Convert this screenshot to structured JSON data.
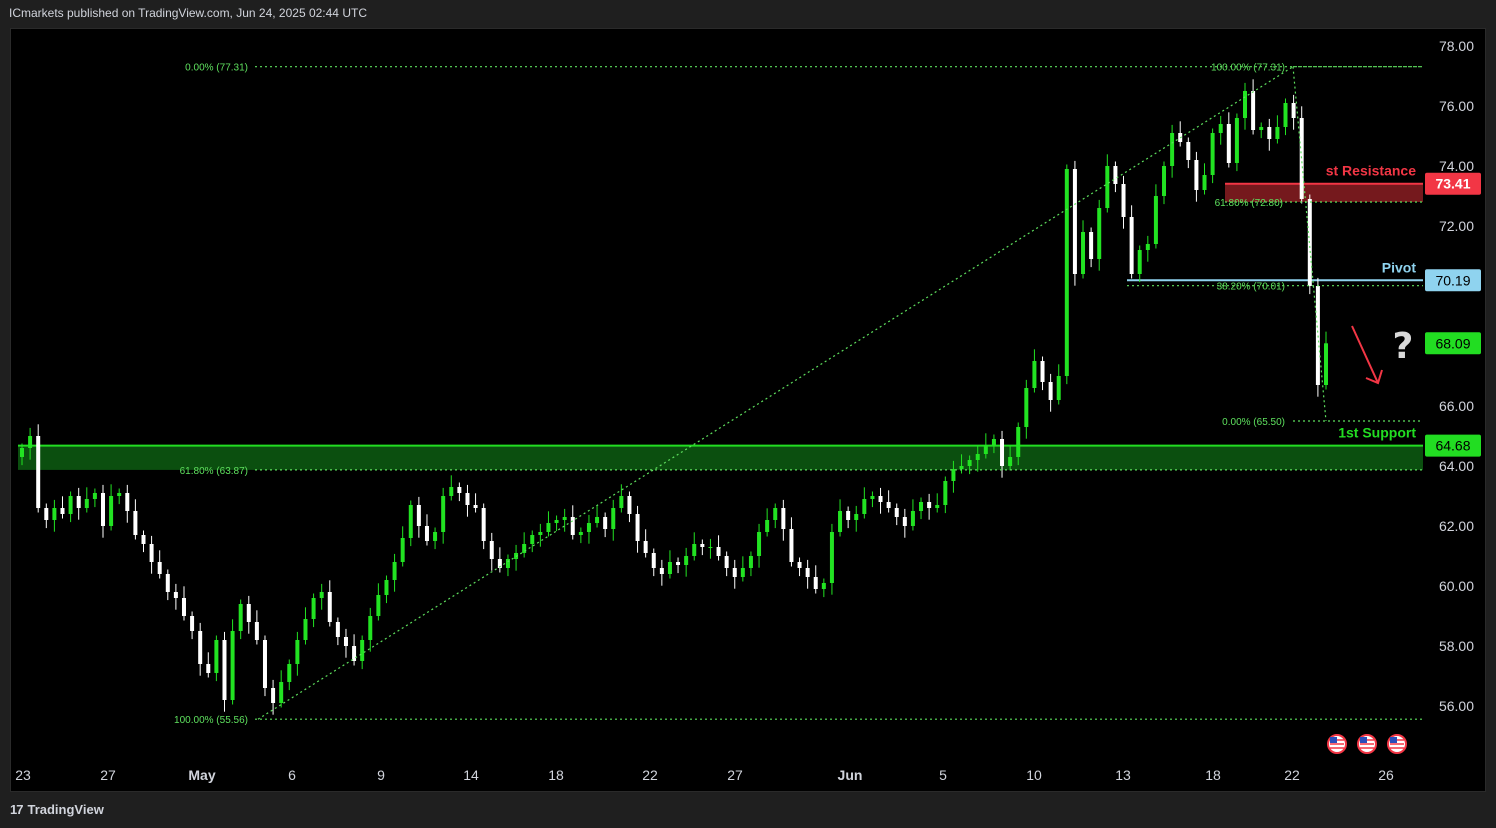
{
  "header": {
    "publisher": "ICmarkets published on TradingView.com, Jun 24, 2025 02:44 UTC"
  },
  "footer": {
    "brand": "TradingView",
    "logo_icon": "tradingview-logo-icon"
  },
  "colors": {
    "background": "#000000",
    "up": "#22e322",
    "down": "#ffffff",
    "fib": "#5ee05e",
    "resistance": "#f23645",
    "pivot": "#8fd3ef",
    "support": "#22dd22",
    "arrow": "#f23645",
    "axis_text": "#d1d4dc"
  },
  "chart_data": {
    "type": "candlestick",
    "title": "",
    "y_ticks": [
      "78.00",
      "76.00",
      "74.00",
      "72.00",
      "70.00",
      "66.00",
      "64.00",
      "62.00",
      "60.00",
      "58.00",
      "56.00"
    ],
    "x_ticks": [
      "23",
      "27",
      "May",
      "6",
      "9",
      "14",
      "18",
      "22",
      "27",
      "Jun",
      "5",
      "10",
      "13",
      "18",
      "22",
      "26"
    ],
    "ylim": [
      54.8,
      78.8
    ],
    "grid": false,
    "levels": [
      {
        "name": "1st Resistance",
        "label": "st Resistance",
        "value": 73.41,
        "badge": "73.41",
        "color": "resistance"
      },
      {
        "name": "Pivot",
        "label": "Pivot",
        "value": 70.19,
        "badge": "70.19",
        "color": "pivot"
      },
      {
        "name": "1st Support",
        "label": "1st Support",
        "value": 64.68,
        "badge": "64.68",
        "color": "support"
      },
      {
        "name": "last",
        "label": "",
        "value": 68.09,
        "badge": "68.09",
        "color": "up"
      }
    ],
    "fib_labels": [
      {
        "text": "0.00% (77.31)",
        "value": 77.31
      },
      {
        "text": "100.00% (77.31)",
        "value": 77.31
      },
      {
        "text": "61.80% (72.80)",
        "value": 72.8
      },
      {
        "text": "38.20% (70.01)",
        "value": 70.01
      },
      {
        "text": "0.00% (65.50)",
        "value": 65.5
      },
      {
        "text": "61.80% (63.87)",
        "value": 63.87
      },
      {
        "text": "100.00% (55.56)",
        "value": 55.56
      }
    ],
    "question_mark": "?",
    "closes": [
      64.6,
      65.0,
      62.6,
      62.2,
      62.6,
      62.4,
      63.0,
      62.6,
      62.9,
      63.1,
      62.0,
      63.0,
      63.1,
      62.5,
      61.7,
      61.4,
      60.8,
      60.4,
      59.8,
      59.6,
      59.0,
      58.5,
      57.4,
      57.1,
      58.2,
      56.2,
      58.5,
      59.4,
      58.8,
      58.2,
      56.6,
      56.1,
      56.8,
      57.4,
      58.2,
      58.9,
      59.6,
      59.8,
      58.8,
      58.3,
      58.0,
      57.5,
      58.2,
      59.0,
      59.7,
      60.2,
      60.8,
      61.6,
      62.7,
      62.0,
      61.5,
      61.8,
      63.0,
      63.3,
      63.1,
      62.7,
      62.6,
      61.5,
      60.9,
      60.6,
      60.9,
      61.1,
      61.4,
      61.7,
      61.8,
      62.1,
      62.2,
      62.3,
      61.7,
      61.8,
      62.1,
      62.3,
      61.9,
      62.6,
      63.0,
      62.4,
      61.5,
      61.1,
      60.6,
      60.4,
      60.8,
      60.7,
      61.0,
      61.4,
      61.3,
      61.3,
      61.0,
      60.6,
      60.3,
      60.6,
      61.0,
      61.8,
      62.2,
      62.6,
      61.9,
      60.8,
      60.6,
      60.3,
      59.9,
      60.1,
      61.8,
      62.5,
      62.2,
      62.4,
      62.9,
      63.0,
      62.8,
      62.6,
      62.3,
      62.0,
      62.5,
      62.8,
      62.6,
      62.7,
      63.5,
      63.9,
      64.0,
      64.2,
      64.4,
      64.7,
      64.9,
      64.0,
      64.3,
      65.3,
      66.6,
      67.5,
      66.8,
      66.2,
      67.0,
      73.9,
      70.4,
      71.8,
      70.9,
      72.6,
      74.0,
      73.4,
      72.3,
      70.4,
      71.2,
      71.4,
      73.0,
      74.0,
      75.1,
      74.8,
      74.2,
      73.2,
      73.7,
      75.1,
      75.4,
      74.1,
      75.6,
      76.5,
      75.2,
      75.3,
      74.9,
      75.3,
      76.1,
      75.6,
      72.9,
      70.0,
      66.7,
      68.09
    ]
  }
}
